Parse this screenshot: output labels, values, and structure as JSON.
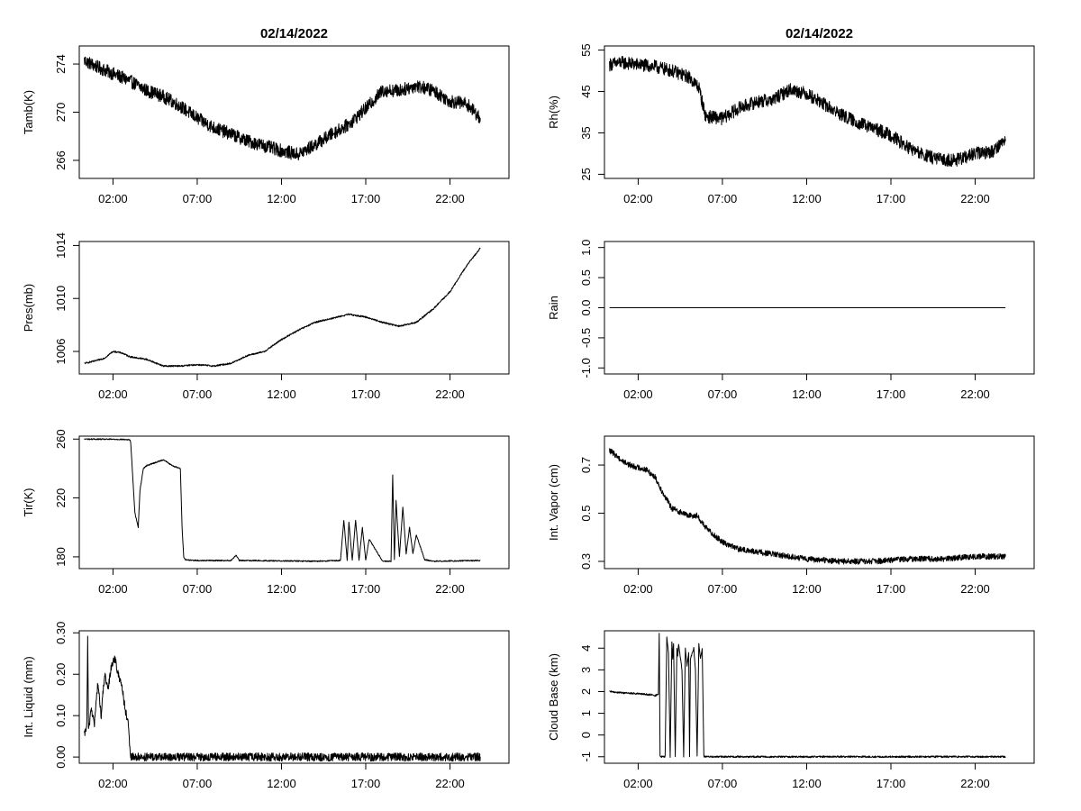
{
  "chart_data": [
    {
      "type": "line",
      "title": "02/14/2022",
      "ylabel": "Tamb(K)",
      "xlim": [
        0,
        25.5
      ],
      "xticks": [
        2,
        7,
        12,
        17,
        22
      ],
      "xtick_labels": [
        "02:00",
        "07:00",
        "12:00",
        "17:00",
        "22:00"
      ],
      "ylim": [
        264.5,
        275.5
      ],
      "yticks": [
        266,
        270,
        274
      ],
      "ytick_labels": [
        "266",
        "270",
        "274"
      ],
      "noise": 0.55,
      "series": [
        {
          "x": [
            0.3,
            1.0,
            2.0,
            3.0,
            4.0,
            5.0,
            6.0,
            7.0,
            8.0,
            9.0,
            10.0,
            11.0,
            12.0,
            13.0,
            14.0,
            15.0,
            16.0,
            17.0,
            18.0,
            19.0,
            20.0,
            21.0,
            22.0,
            23.0,
            23.8
          ],
          "y": [
            274.3,
            273.8,
            273.2,
            272.6,
            271.8,
            271.3,
            270.5,
            269.5,
            268.7,
            268.2,
            267.6,
            267.2,
            266.8,
            266.5,
            267.3,
            268.2,
            269.0,
            270.3,
            271.8,
            271.8,
            272.2,
            271.8,
            270.9,
            270.7,
            269.5
          ]
        }
      ]
    },
    {
      "type": "line",
      "title": "02/14/2022",
      "ylabel": "Rh(%)",
      "xlim": [
        0,
        25.5
      ],
      "xticks": [
        2,
        7,
        12,
        17,
        22
      ],
      "xtick_labels": [
        "02:00",
        "07:00",
        "12:00",
        "17:00",
        "22:00"
      ],
      "ylim": [
        24,
        56
      ],
      "yticks": [
        25,
        35,
        45,
        55
      ],
      "ytick_labels": [
        "25",
        "35",
        "45",
        "55"
      ],
      "noise": 1.6,
      "series": [
        {
          "x": [
            0.3,
            1.0,
            2.0,
            3.0,
            4.0,
            5.0,
            5.6,
            6.0,
            7.0,
            8.0,
            9.0,
            10.0,
            11.0,
            12.0,
            13.0,
            14.0,
            15.0,
            16.0,
            17.0,
            18.0,
            19.0,
            20.0,
            21.0,
            22.0,
            23.0,
            23.8
          ],
          "y": [
            51.5,
            52.0,
            51.5,
            51.0,
            50.0,
            48.5,
            46.0,
            39.0,
            38.5,
            41.0,
            42.5,
            43.0,
            45.5,
            44.5,
            42.0,
            39.5,
            37.5,
            36.0,
            34.5,
            31.5,
            29.5,
            28.5,
            28.5,
            30.0,
            30.5,
            33.5
          ]
        }
      ]
    },
    {
      "type": "line",
      "ylabel": "Pres(mb)",
      "xlim": [
        0,
        25.5
      ],
      "xticks": [
        2,
        7,
        12,
        17,
        22
      ],
      "xtick_labels": [
        "02:00",
        "07:00",
        "12:00",
        "17:00",
        "22:00"
      ],
      "ylim": [
        1004.3,
        1014.3
      ],
      "yticks": [
        1006,
        1010,
        1014
      ],
      "ytick_labels": [
        "1006",
        "1010",
        "1014"
      ],
      "noise": 0.06,
      "series": [
        {
          "x": [
            0.3,
            1.0,
            1.5,
            2.0,
            2.5,
            3.0,
            4.0,
            5.0,
            6.0,
            7.0,
            8.0,
            9.0,
            10.0,
            11.0,
            12.0,
            13.0,
            14.0,
            15.0,
            16.0,
            17.0,
            18.0,
            19.0,
            20.0,
            21.0,
            22.0,
            23.0,
            23.8
          ],
          "y": [
            1005.1,
            1005.3,
            1005.5,
            1006.0,
            1005.9,
            1005.6,
            1005.4,
            1004.9,
            1004.9,
            1005.0,
            1004.9,
            1005.1,
            1005.7,
            1006.0,
            1006.9,
            1007.6,
            1008.2,
            1008.5,
            1008.8,
            1008.6,
            1008.2,
            1007.9,
            1008.2,
            1009.2,
            1010.5,
            1012.5,
            1013.8
          ]
        }
      ]
    },
    {
      "type": "line",
      "ylabel": "Rain",
      "xlim": [
        0,
        25.5
      ],
      "xticks": [
        2,
        7,
        12,
        17,
        22
      ],
      "xtick_labels": [
        "02:00",
        "07:00",
        "12:00",
        "17:00",
        "22:00"
      ],
      "ylim": [
        -1.1,
        1.1
      ],
      "yticks": [
        -1.0,
        -0.5,
        0.0,
        0.5,
        1.0
      ],
      "ytick_labels": [
        "-1.0",
        "-0.5",
        "0.0",
        "0.5",
        "1.0"
      ],
      "noise": 0,
      "series": [
        {
          "x": [
            0.3,
            23.8
          ],
          "y": [
            0.0,
            0.0
          ]
        }
      ]
    },
    {
      "type": "line",
      "ylabel": "Tir(K)",
      "xlim": [
        0,
        25.5
      ],
      "xticks": [
        2,
        7,
        12,
        17,
        22
      ],
      "xtick_labels": [
        "02:00",
        "07:00",
        "12:00",
        "17:00",
        "22:00"
      ],
      "ylim": [
        172,
        262
      ],
      "yticks": [
        180,
        220,
        260
      ],
      "ytick_labels": [
        "180",
        "220",
        "260"
      ],
      "noise": 0.4,
      "series": [
        {
          "x": [
            0.3,
            2.5,
            3.0,
            3.05,
            3.3,
            3.5,
            3.6,
            3.8,
            4.0,
            4.5,
            5.0,
            5.5,
            6.0,
            6.1,
            6.2,
            6.3,
            7.0,
            9.0,
            9.3,
            9.5,
            10.0,
            14.0,
            15.5,
            15.7,
            15.9,
            16.0,
            16.2,
            16.4,
            16.6,
            16.8,
            17.0,
            17.2,
            18.0,
            18.5,
            18.6,
            18.7,
            18.8,
            19.0,
            19.2,
            19.4,
            19.6,
            19.8,
            20.0,
            20.5,
            21.0,
            23.8
          ],
          "y": [
            260,
            259.8,
            259.5,
            258,
            210,
            200,
            225,
            240,
            242,
            244,
            246,
            242,
            240,
            200,
            180,
            178,
            177.5,
            177.5,
            181,
            177.5,
            177.5,
            177,
            177.5,
            205,
            177.5,
            204,
            177.5,
            205,
            177.5,
            200,
            177.5,
            192,
            177,
            177,
            236,
            178,
            218,
            180,
            214,
            182,
            200,
            182,
            195,
            178,
            177,
            177.5
          ]
        }
      ]
    },
    {
      "type": "line",
      "ylabel": "Int. Vapor (cm)",
      "xlim": [
        0,
        25.5
      ],
      "xticks": [
        2,
        7,
        12,
        17,
        22
      ],
      "xtick_labels": [
        "02:00",
        "07:00",
        "12:00",
        "17:00",
        "22:00"
      ],
      "ylim": [
        0.27,
        0.82
      ],
      "yticks": [
        0.3,
        0.5,
        0.7
      ],
      "ytick_labels": [
        "0.3",
        "0.5",
        "0.7"
      ],
      "noise": 0.012,
      "series": [
        {
          "x": [
            0.3,
            0.7,
            1.0,
            1.5,
            2.0,
            2.5,
            3.0,
            3.5,
            4.0,
            5.0,
            5.5,
            6.0,
            7.0,
            8.0,
            9.0,
            10.0,
            12.0,
            14.0,
            16.0,
            18.0,
            20.0,
            22.0,
            23.8
          ],
          "y": [
            0.76,
            0.74,
            0.72,
            0.7,
            0.69,
            0.68,
            0.65,
            0.58,
            0.52,
            0.49,
            0.49,
            0.44,
            0.38,
            0.35,
            0.34,
            0.33,
            0.31,
            0.3,
            0.3,
            0.31,
            0.31,
            0.32,
            0.32
          ]
        }
      ]
    },
    {
      "type": "line",
      "ylabel": "Int. Liquid (mm)",
      "xlim": [
        0,
        25.5
      ],
      "xticks": [
        2,
        7,
        12,
        17,
        22
      ],
      "xtick_labels": [
        "02:00",
        "07:00",
        "12:00",
        "17:00",
        "22:00"
      ],
      "ylim": [
        -0.015,
        0.305
      ],
      "yticks": [
        0.0,
        0.1,
        0.2,
        0.3
      ],
      "ytick_labels": [
        "0.00",
        "0.10",
        "0.20",
        "0.30"
      ],
      "noise": 0.01,
      "series": [
        {
          "x": [
            0.3,
            0.45,
            0.5,
            0.55,
            0.7,
            0.9,
            1.1,
            1.3,
            1.5,
            1.7,
            1.9,
            2.1,
            2.3,
            2.5,
            2.7,
            2.9,
            3.0,
            3.05,
            23.8
          ],
          "y": [
            0.05,
            0.08,
            0.29,
            0.06,
            0.12,
            0.08,
            0.18,
            0.1,
            0.2,
            0.16,
            0.22,
            0.24,
            0.2,
            0.18,
            0.12,
            0.08,
            0.02,
            0.0,
            0.0
          ]
        }
      ]
    },
    {
      "type": "line",
      "ylabel": "Cloud Base (km)",
      "xlim": [
        0,
        25.5
      ],
      "xticks": [
        2,
        7,
        12,
        17,
        22
      ],
      "xtick_labels": [
        "02:00",
        "07:00",
        "12:00",
        "17:00",
        "22:00"
      ],
      "ylim": [
        -1.3,
        4.8
      ],
      "yticks": [
        -1,
        0,
        1,
        2,
        3,
        4
      ],
      "ytick_labels": [
        "-1",
        "0",
        "1",
        "2",
        "3",
        "4"
      ],
      "noise": 0.04,
      "series": [
        {
          "x": [
            0.3,
            1.0,
            2.0,
            2.8,
            3.0,
            3.2,
            3.25,
            3.3,
            3.35,
            3.6,
            3.7,
            3.8,
            3.9,
            4.0,
            4.05,
            4.1,
            4.2,
            4.3,
            4.35,
            4.4,
            4.6,
            4.7,
            4.8,
            4.9,
            5.0,
            5.05,
            5.1,
            5.3,
            5.4,
            5.5,
            5.6,
            5.7,
            5.8,
            5.9,
            6.0,
            23.8
          ],
          "y": [
            2.0,
            1.95,
            1.9,
            1.85,
            1.8,
            1.9,
            4.7,
            -1.0,
            -1.0,
            -1.0,
            4.5,
            3.8,
            -1.0,
            4.3,
            3.5,
            4.2,
            -1.0,
            4.0,
            3.6,
            4.2,
            3.0,
            -1.0,
            4.0,
            3.2,
            3.8,
            -1.0,
            3.5,
            4.0,
            3.0,
            -1.0,
            4.2,
            3.5,
            4.0,
            -1.0,
            -1.0,
            -1.0
          ]
        }
      ]
    }
  ]
}
